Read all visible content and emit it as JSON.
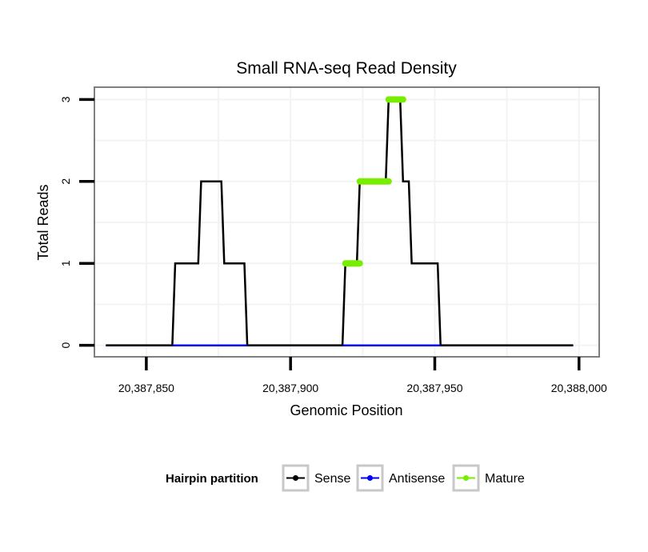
{
  "chart_data": {
    "type": "line",
    "title": "Small RNA-seq Read Density",
    "xlabel": "Genomic Position",
    "ylabel": "Total Reads",
    "xlim": [
      20387832,
      20388007
    ],
    "ylim": [
      -0.14,
      3.15
    ],
    "x_ticks": [
      20387850,
      20387900,
      20387950,
      20388000
    ],
    "x_tick_labels": [
      "20,387,850",
      "20,387,900",
      "20,387,950",
      "20,388,000"
    ],
    "y_ticks": [
      0,
      1,
      2,
      3
    ],
    "y_tick_labels": [
      "0",
      "1",
      "2",
      "3"
    ],
    "grid": true,
    "legend": {
      "title": "Hairpin partition",
      "position": "bottom",
      "entries": [
        "Sense",
        "Antisense",
        "Mature"
      ]
    },
    "series": [
      {
        "name": "Sense",
        "color": "#000000",
        "x": [
          20387836,
          20387859,
          20387860,
          20387868,
          20387869,
          20387876,
          20387877,
          20387884,
          20387885,
          20387918,
          20387919,
          20387923,
          20387924,
          20387933,
          20387934,
          20387938,
          20387939,
          20387941,
          20387942,
          20387951,
          20387952,
          20387998
        ],
        "values": [
          0,
          0,
          1,
          1,
          2,
          2,
          1,
          1,
          0,
          0,
          1,
          1,
          2,
          2,
          3,
          3,
          2,
          2,
          1,
          1,
          0,
          0
        ]
      },
      {
        "name": "Antisense",
        "color": "#0000ff",
        "x": [
          20387836,
          20387998
        ],
        "values": [
          0,
          0
        ]
      },
      {
        "name": "Mature",
        "color": "#77ee00",
        "segments": [
          {
            "x": [
              20387919,
              20387924
            ],
            "value": 1
          },
          {
            "x": [
              20387924,
              20387934
            ],
            "value": 2
          },
          {
            "x": [
              20387934,
              20387939
            ],
            "value": 3
          }
        ]
      }
    ]
  }
}
